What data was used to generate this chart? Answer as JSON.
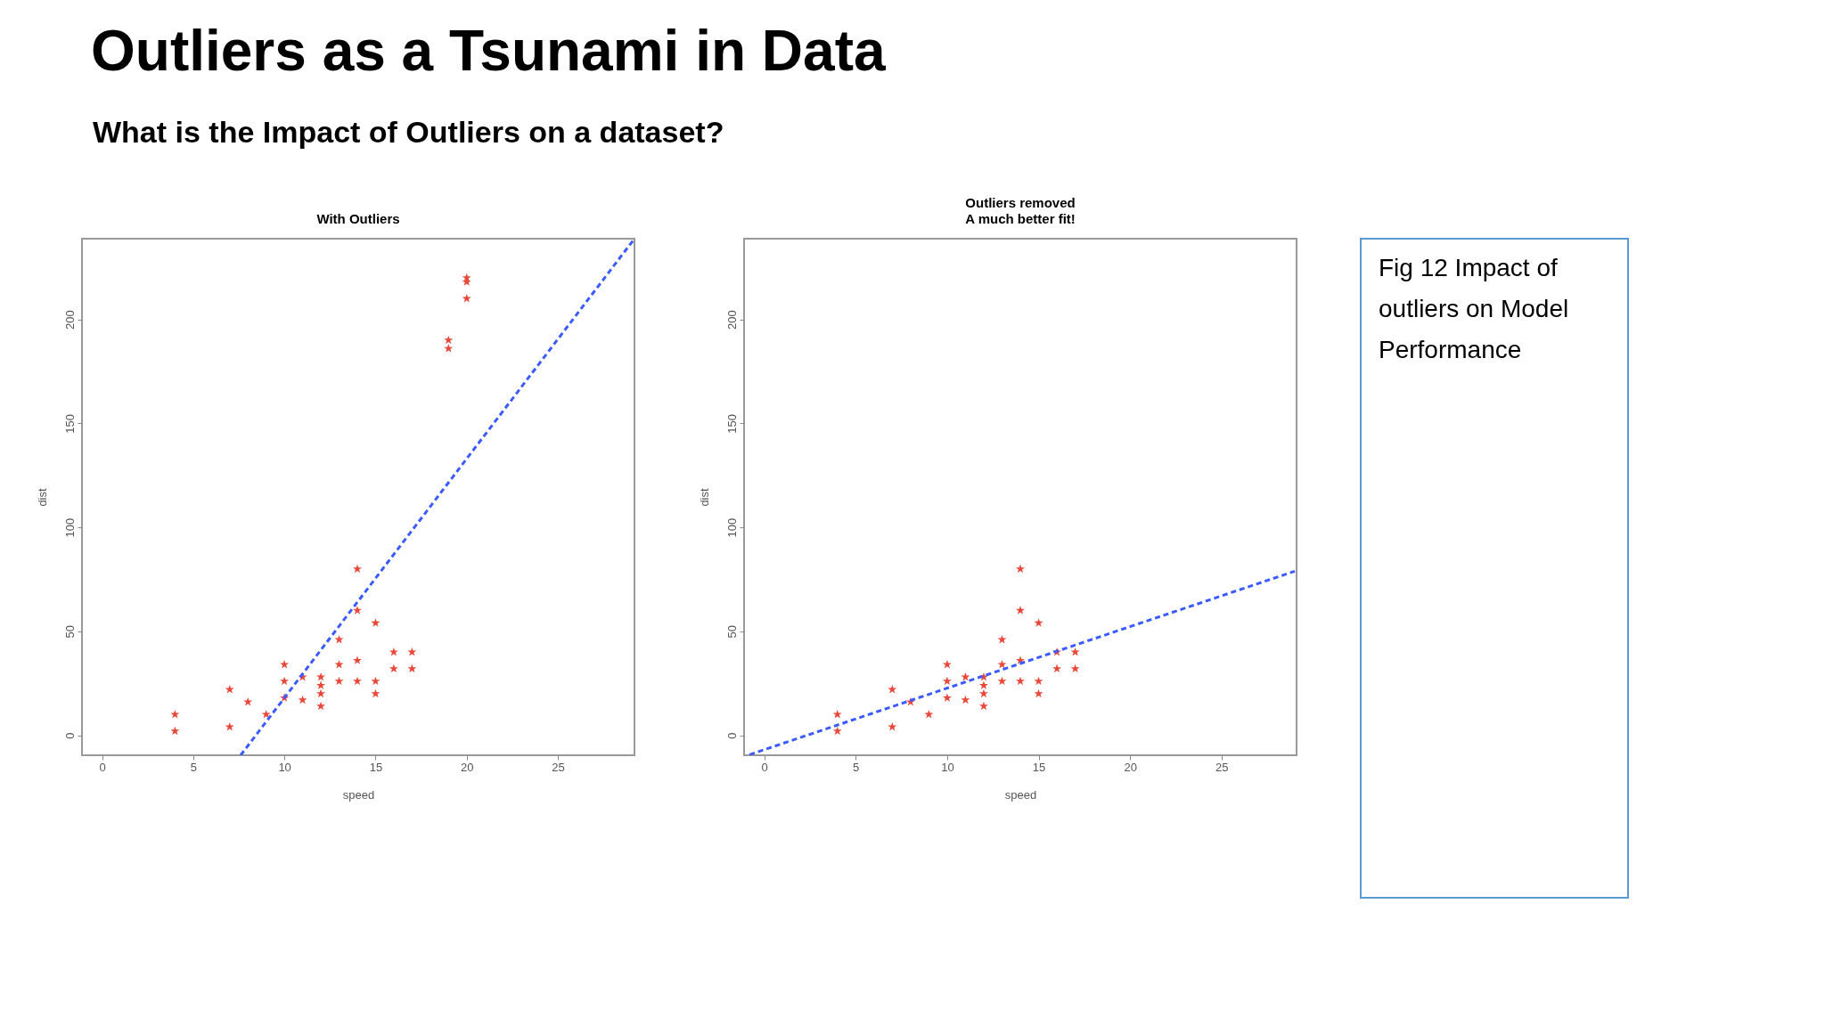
{
  "chart_data": [
    {
      "type": "other",
      "title": "Outliers as a Tsunami in Data",
      "subtitle": "What is the Impact of Outliers on a dataset?"
    },
    {
      "type": "scatter",
      "title": "With Outliers",
      "xlabel": "speed",
      "ylabel": "dist",
      "xlim": [
        -1.1,
        29.2
      ],
      "ylim": [
        -9.6,
        238.8
      ],
      "xticks": [
        0,
        5,
        10,
        15,
        20,
        25
      ],
      "yticks": [
        0,
        50,
        100,
        150,
        200
      ],
      "grid": false,
      "series": [
        {
          "type": "scatter",
          "marker": "star",
          "color": "#e8483a",
          "x": [
            4,
            4,
            7,
            7,
            8,
            9,
            10,
            10,
            10,
            11,
            11,
            12,
            12,
            12,
            12,
            13,
            13,
            13,
            14,
            14,
            14,
            14,
            15,
            15,
            15,
            16,
            16,
            17,
            17,
            19,
            19,
            20,
            20,
            20
          ],
          "values": [
            2,
            10,
            4,
            22,
            16,
            10,
            18,
            26,
            34,
            17,
            28,
            14,
            20,
            24,
            28,
            26,
            34,
            46,
            26,
            36,
            60,
            80,
            20,
            26,
            54,
            32,
            40,
            32,
            40,
            190,
            186,
            210,
            218,
            220
          ]
        },
        {
          "type": "line",
          "line_style": "dashed",
          "color": "#3b5bff",
          "x": [
            7.6,
            29.2
          ],
          "values": [
            -9.6,
            238.8
          ]
        }
      ]
    },
    {
      "type": "scatter",
      "title": "Outliers removed",
      "subtitle": "A much better fit!",
      "xlabel": "speed",
      "ylabel": "dist",
      "xlim": [
        -1.1,
        29.1
      ],
      "ylim": [
        -9.6,
        238.8
      ],
      "xticks": [
        0,
        5,
        10,
        15,
        20,
        25
      ],
      "yticks": [
        0,
        50,
        100,
        150,
        200
      ],
      "grid": false,
      "series": [
        {
          "type": "scatter",
          "marker": "star",
          "color": "#e8483a",
          "x": [
            4,
            4,
            7,
            7,
            8,
            9,
            10,
            10,
            10,
            11,
            11,
            12,
            12,
            12,
            12,
            13,
            13,
            13,
            14,
            14,
            14,
            14,
            15,
            15,
            15,
            16,
            16,
            17,
            17
          ],
          "values": [
            2,
            10,
            4,
            22,
            16,
            10,
            18,
            26,
            34,
            17,
            28,
            14,
            20,
            24,
            28,
            26,
            34,
            46,
            26,
            36,
            60,
            80,
            20,
            26,
            54,
            32,
            40,
            32,
            40
          ]
        },
        {
          "type": "line",
          "line_style": "dashed",
          "color": "#3b5bff",
          "x": [
            -0.8,
            29.0
          ],
          "values": [
            -9.3,
            78.9
          ]
        }
      ]
    },
    {
      "type": "other",
      "annotations": [
        "Fig 12 Impact of outliers on Model Performance"
      ]
    }
  ]
}
